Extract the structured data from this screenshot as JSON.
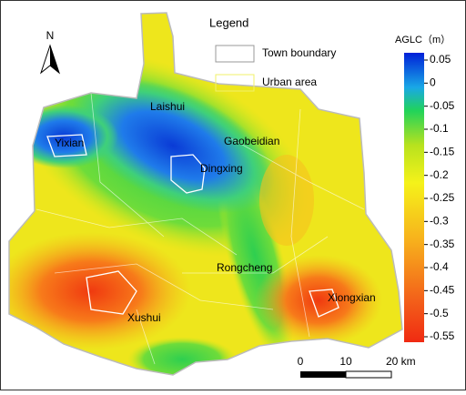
{
  "north_label": "N",
  "legend": {
    "title": "Legend",
    "items": [
      "Town boundary",
      "Urban area"
    ]
  },
  "colorbar": {
    "title": "AGLC（m）",
    "ticks": [
      0.05,
      0,
      -0.05,
      -0.1,
      -0.15,
      -0.2,
      -0.25,
      -0.3,
      -0.35,
      -0.4,
      -0.45,
      -0.5,
      -0.55
    ]
  },
  "places": [
    "Laishui",
    "Yixian",
    "Gaobeidian",
    "Dingxing",
    "Rongcheng",
    "Xiongxian",
    "Xushui"
  ],
  "scale_bar": {
    "labels": [
      "0",
      "10",
      "20 km"
    ]
  }
}
